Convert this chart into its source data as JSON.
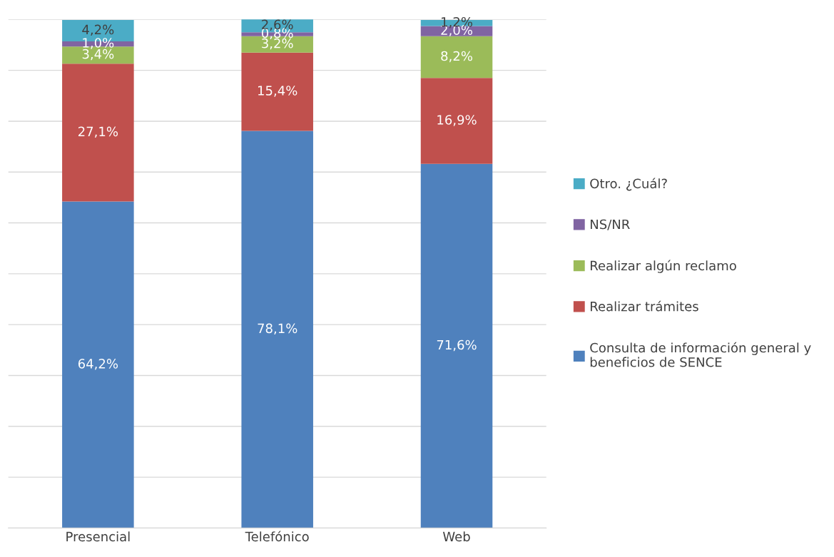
{
  "chart_data": {
    "type": "bar",
    "stacked": true,
    "categories": [
      "Presencial",
      "Telefónico",
      "Web"
    ],
    "series": [
      {
        "name": "Consulta de información general y beneficios de SENCE",
        "color": "#4f81bd",
        "values": [
          64.2,
          78.1,
          71.6
        ],
        "value_labels": [
          "64,2%",
          "78,1%",
          "71,6%"
        ]
      },
      {
        "name": "Realizar trámites",
        "color": "#c0504d",
        "values": [
          27.1,
          15.4,
          16.9
        ],
        "value_labels": [
          "27,1%",
          "15,4%",
          "16,9%"
        ]
      },
      {
        "name": "Realizar algún reclamo",
        "color": "#9bbb59",
        "values": [
          3.4,
          3.2,
          8.2
        ],
        "value_labels": [
          "3,4%",
          "3,2%",
          "8,2%"
        ]
      },
      {
        "name": "NS/NR",
        "color": "#8064a2",
        "values": [
          1.0,
          0.8,
          2.0
        ],
        "value_labels": [
          "1,0%",
          "0,8%",
          "2,0%"
        ]
      },
      {
        "name": "Otro. ¿Cuál?",
        "color": "#4bacc6",
        "values": [
          4.2,
          2.6,
          1.2
        ],
        "value_labels": [
          "4,2%",
          "2,6%",
          "1,2%"
        ]
      }
    ],
    "ylim": [
      0,
      100
    ],
    "yticks": [
      {
        "value": 0,
        "label": null
      },
      {
        "value": 10,
        "label": null
      },
      {
        "value": 20,
        "label": null
      },
      {
        "value": 30,
        "label": null
      },
      {
        "value": 40,
        "label": null
      },
      {
        "value": 50,
        "label": null
      },
      {
        "value": 60,
        "label": null
      },
      {
        "value": 70,
        "label": null
      },
      {
        "value": 80,
        "label": null
      },
      {
        "value": 90,
        "label": null
      },
      {
        "value": 100,
        "label": null
      }
    ],
    "tick_labels": "x",
    "grid": "y",
    "legend": "right"
  }
}
